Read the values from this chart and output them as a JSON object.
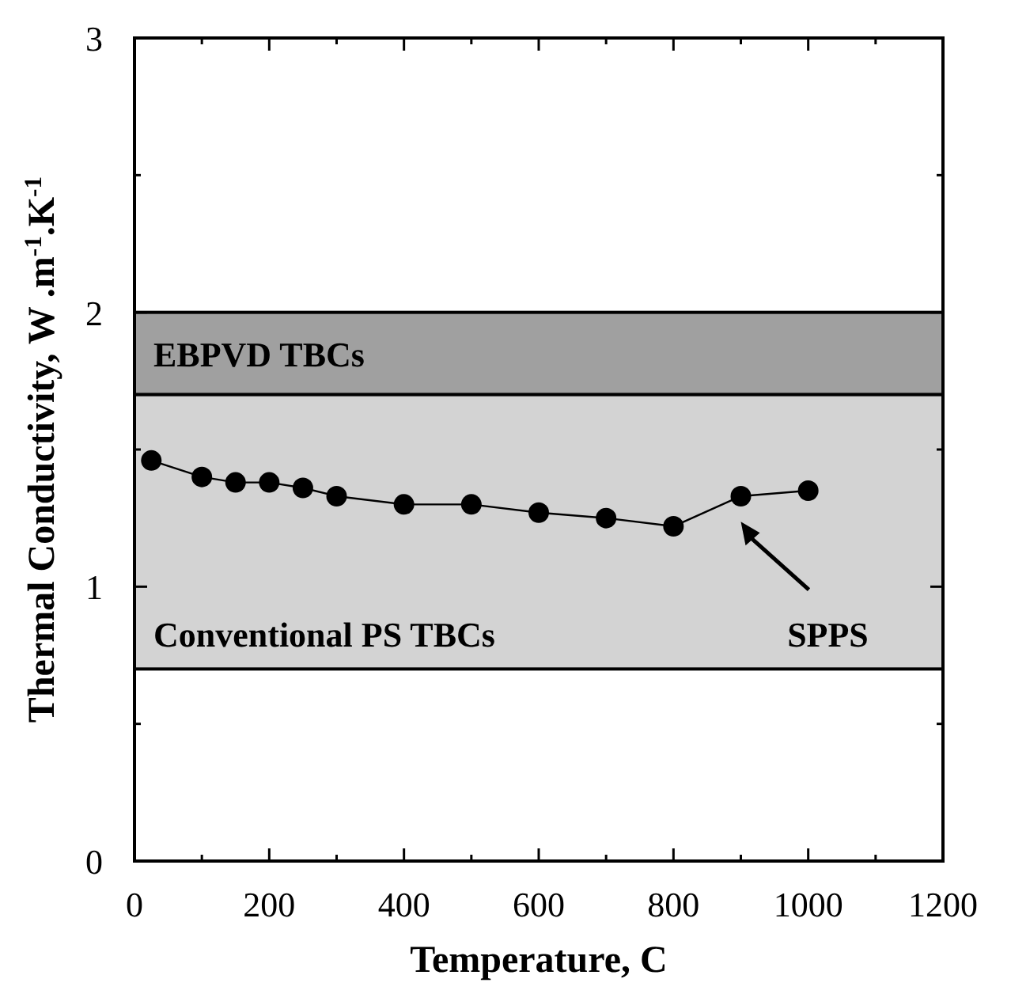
{
  "chart_data": {
    "type": "line",
    "xlabel": "Temperature,  C",
    "ylabel": "Thermal Conductivity, W .m$^{-1}$.K$^{-1}$",
    "x": [
      25,
      100,
      150,
      200,
      250,
      300,
      400,
      500,
      600,
      700,
      800,
      900,
      1000
    ],
    "series": [
      {
        "color": "#000000",
        "values": [
          1.46,
          1.4,
          1.38,
          1.38,
          1.36,
          1.33,
          1.3,
          1.3,
          1.27,
          1.25,
          1.22,
          1.33,
          1.35
        ]
      }
    ],
    "marker": "circle",
    "line_style": "solid",
    "xlim": [
      0,
      1200
    ],
    "xticks": [
      0,
      {
        "value": 100,
        "label": null
      },
      200,
      {
        "value": 300,
        "label": null
      },
      400,
      {
        "value": 500,
        "label": null
      },
      600,
      {
        "value": 700,
        "label": null
      },
      800,
      {
        "value": 900,
        "label": null
      },
      1000,
      {
        "value": 1100,
        "label": null
      },
      1200
    ],
    "ylim": [
      0,
      3
    ],
    "yticks": [
      0,
      {
        "value": 0.5,
        "label": null
      },
      1,
      {
        "value": 1.5,
        "label": null
      },
      2,
      {
        "value": 2.5,
        "label": null
      },
      3
    ],
    "bands": [
      {
        "axis": "y",
        "from": 1.7,
        "to": 2,
        "label": "EBPVD TBCs",
        "color": "#a0a0a0"
      },
      {
        "axis": "y",
        "from": 0.7,
        "to": 1.7,
        "label": "Conventional PS TBCs",
        "color": "#d3d3d3"
      }
    ],
    "annotations": [
      "SPPS"
    ]
  }
}
